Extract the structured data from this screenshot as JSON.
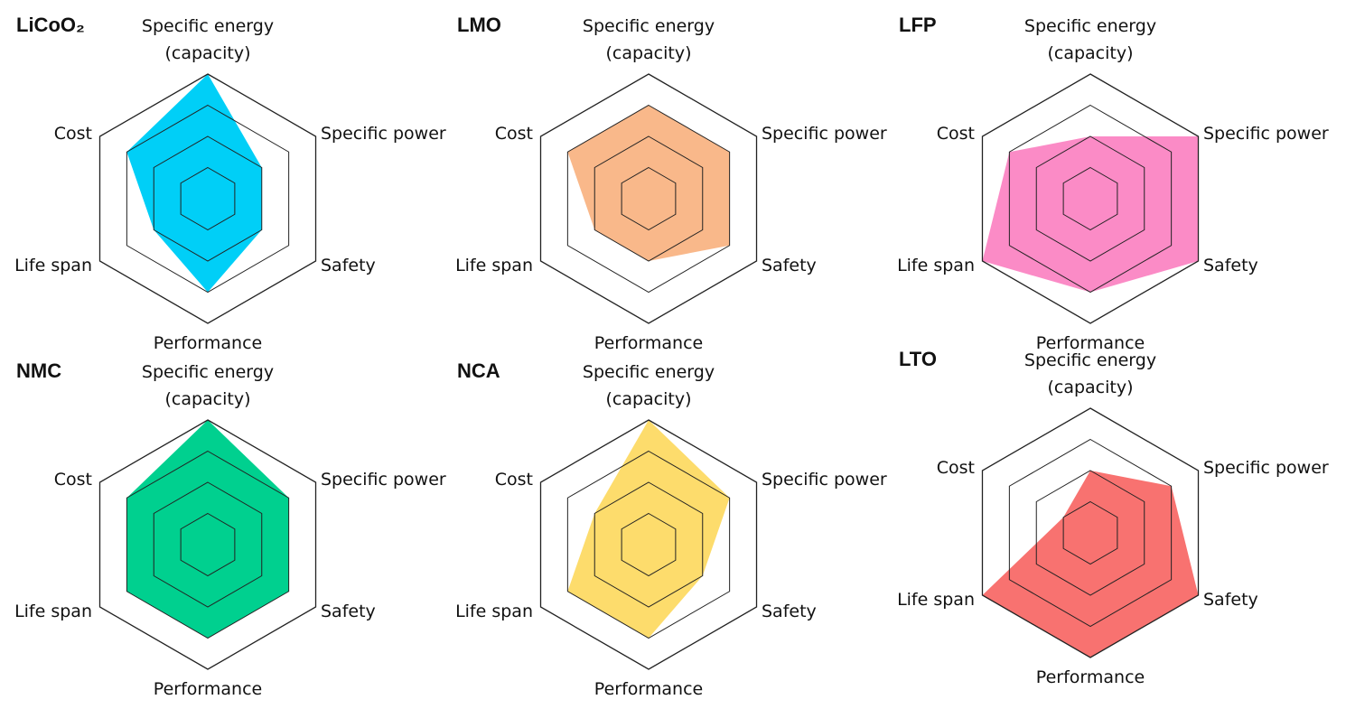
{
  "chart_data": [
    {
      "type": "radar",
      "title": "LiCoO₂",
      "axes": [
        "Specific energy (capacity)",
        "Specific power",
        "Safety",
        "Performance",
        "Life span",
        "Cost"
      ],
      "values": [
        4,
        2,
        2,
        3,
        2,
        3
      ],
      "rmax": 4,
      "rings": 4,
      "color": "#00cff7"
    },
    {
      "type": "radar",
      "title": "LMO",
      "axes": [
        "Specific energy (capacity)",
        "Specific power",
        "Safety",
        "Performance",
        "Life span",
        "Cost"
      ],
      "values": [
        3,
        3,
        3,
        2,
        2,
        3
      ],
      "rmax": 4,
      "rings": 4,
      "color": "#f9b88a"
    },
    {
      "type": "radar",
      "title": "LFP",
      "axes": [
        "Specific energy (capacity)",
        "Specific power",
        "Safety",
        "Performance",
        "Life span",
        "Cost"
      ],
      "values": [
        2,
        4,
        4,
        3,
        4,
        3
      ],
      "rmax": 4,
      "rings": 4,
      "color": "#fb8bc6"
    },
    {
      "type": "radar",
      "title": "NMC",
      "axes": [
        "Specific energy (capacity)",
        "Specific power",
        "Safety",
        "Performance",
        "Life span",
        "Cost"
      ],
      "values": [
        4,
        3,
        3,
        3,
        3,
        3
      ],
      "rmax": 4,
      "rings": 4,
      "color": "#00d08f"
    },
    {
      "type": "radar",
      "title": "NCA",
      "axes": [
        "Specific energy (capacity)",
        "Specific power",
        "Safety",
        "Performance",
        "Life span",
        "Cost"
      ],
      "values": [
        4,
        3,
        2,
        3,
        3,
        2
      ],
      "rmax": 4,
      "rings": 4,
      "color": "#fddc6c"
    },
    {
      "type": "radar",
      "title": "LTO",
      "axes": [
        "Specific energy (capacity)",
        "Specific power",
        "Safety",
        "Performance",
        "Life span",
        "Cost"
      ],
      "values": [
        2,
        3,
        4,
        4,
        4,
        1
      ],
      "rmax": 4,
      "rings": 4,
      "color": "#f87270"
    }
  ],
  "axis_label_lines": {
    "energy_line1": "Specific energy",
    "energy_line2": "(capacity)"
  }
}
